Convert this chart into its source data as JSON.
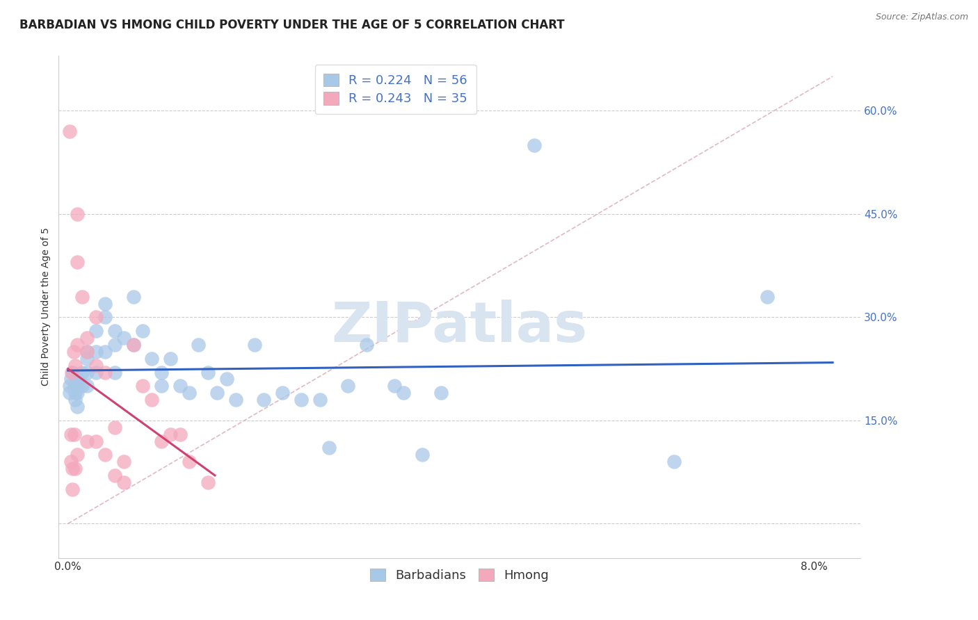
{
  "title": "BARBADIAN VS HMONG CHILD POVERTY UNDER THE AGE OF 5 CORRELATION CHART",
  "source": "Source: ZipAtlas.com",
  "ylabel": "Child Poverty Under the Age of 5",
  "x_ticks": [
    0.0,
    0.08
  ],
  "x_tick_labels": [
    "0.0%",
    "8.0%"
  ],
  "y_ticks": [
    0.0,
    0.15,
    0.3,
    0.45,
    0.6
  ],
  "y_tick_labels": [
    "",
    "15.0%",
    "30.0%",
    "45.0%",
    "60.0%"
  ],
  "xlim": [
    -0.001,
    0.085
  ],
  "ylim": [
    -0.05,
    0.68
  ],
  "barbadian_color": "#a8c8e8",
  "hmong_color": "#f4a8bc",
  "barbadian_line_color": "#3060c0",
  "hmong_line_color": "#d04070",
  "diagonal_color": "#e0b0b8",
  "barbadian_R": 0.224,
  "barbadian_N": 56,
  "hmong_R": 0.243,
  "hmong_N": 35,
  "watermark": "ZIPatlas",
  "watermark_color": "#d8e4f0",
  "barbadian_x": [
    0.0002,
    0.0002,
    0.0003,
    0.0005,
    0.0007,
    0.0008,
    0.0008,
    0.001,
    0.001,
    0.001,
    0.001,
    0.0015,
    0.0015,
    0.002,
    0.002,
    0.002,
    0.002,
    0.003,
    0.003,
    0.003,
    0.004,
    0.004,
    0.004,
    0.005,
    0.005,
    0.005,
    0.006,
    0.007,
    0.007,
    0.008,
    0.009,
    0.01,
    0.01,
    0.011,
    0.012,
    0.013,
    0.014,
    0.015,
    0.016,
    0.017,
    0.018,
    0.02,
    0.021,
    0.023,
    0.025,
    0.027,
    0.028,
    0.03,
    0.032,
    0.035,
    0.036,
    0.038,
    0.04,
    0.05,
    0.065,
    0.075
  ],
  "barbadian_y": [
    0.2,
    0.19,
    0.21,
    0.22,
    0.2,
    0.19,
    0.18,
    0.21,
    0.2,
    0.19,
    0.17,
    0.22,
    0.2,
    0.25,
    0.24,
    0.22,
    0.2,
    0.28,
    0.25,
    0.22,
    0.32,
    0.3,
    0.25,
    0.28,
    0.26,
    0.22,
    0.27,
    0.33,
    0.26,
    0.28,
    0.24,
    0.22,
    0.2,
    0.24,
    0.2,
    0.19,
    0.26,
    0.22,
    0.19,
    0.21,
    0.18,
    0.26,
    0.18,
    0.19,
    0.18,
    0.18,
    0.11,
    0.2,
    0.26,
    0.2,
    0.19,
    0.1,
    0.19,
    0.55,
    0.09,
    0.33
  ],
  "hmong_x": [
    0.0002,
    0.0003,
    0.0003,
    0.0004,
    0.0005,
    0.0005,
    0.0006,
    0.0007,
    0.0008,
    0.0008,
    0.001,
    0.001,
    0.001,
    0.001,
    0.0015,
    0.002,
    0.002,
    0.002,
    0.003,
    0.003,
    0.003,
    0.004,
    0.004,
    0.005,
    0.005,
    0.006,
    0.006,
    0.007,
    0.008,
    0.009,
    0.01,
    0.011,
    0.012,
    0.013,
    0.015
  ],
  "hmong_y": [
    0.57,
    0.13,
    0.09,
    0.22,
    0.08,
    0.05,
    0.25,
    0.13,
    0.23,
    0.08,
    0.45,
    0.38,
    0.26,
    0.1,
    0.33,
    0.27,
    0.25,
    0.12,
    0.3,
    0.23,
    0.12,
    0.22,
    0.1,
    0.14,
    0.07,
    0.09,
    0.06,
    0.26,
    0.2,
    0.18,
    0.12,
    0.13,
    0.13,
    0.09,
    0.06
  ],
  "grid_color": "#cccccc",
  "background_color": "#ffffff",
  "title_fontsize": 12,
  "axis_label_fontsize": 10,
  "tick_fontsize": 11,
  "legend_fontsize": 13
}
